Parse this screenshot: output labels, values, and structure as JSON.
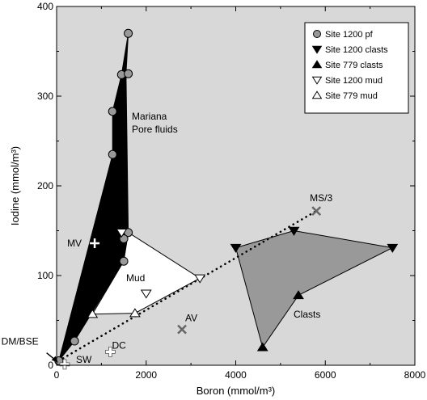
{
  "chart_data": {
    "type": "scatter",
    "xlabel": "Boron (mmol/m³)",
    "ylabel": "Iodine (mmol/m³)",
    "xlim": [
      0,
      8000
    ],
    "ylim": [
      0,
      400
    ],
    "xticks": [
      0,
      2000,
      4000,
      6000,
      8000
    ],
    "yticks": [
      0,
      100,
      200,
      300,
      400
    ],
    "grid": false,
    "legend_position": "top-right",
    "colors": {
      "panel": "#d8d8d8",
      "pore_fluid_region": "#000000",
      "mud_region": "#ffffff",
      "clasts_region": "#999999",
      "pf_marker": "#999999",
      "ref_marker": "#666666"
    },
    "legend": [
      {
        "label": "Site 1200 pf",
        "marker": "circle"
      },
      {
        "label": "Site 1200 clasts",
        "marker": "triangle-down-filled"
      },
      {
        "label": "Site 779 clasts",
        "marker": "triangle-up-filled"
      },
      {
        "label": "Site 1200 mud",
        "marker": "triangle-down-open"
      },
      {
        "label": "Site 779 mud",
        "marker": "triangle-up-open"
      }
    ],
    "series": [
      {
        "name": "Site 1200 pf",
        "marker": "circle",
        "points": [
          {
            "x": 1600,
            "y": 370
          },
          {
            "x": 1450,
            "y": 324
          },
          {
            "x": 1600,
            "y": 325
          },
          {
            "x": 1250,
            "y": 283
          },
          {
            "x": 1250,
            "y": 235
          },
          {
            "x": 1600,
            "y": 148
          },
          {
            "x": 1500,
            "y": 141
          },
          {
            "x": 1500,
            "y": 116
          },
          {
            "x": 400,
            "y": 27
          },
          {
            "x": 50,
            "y": 5
          }
        ]
      },
      {
        "name": "Site 1200 clasts",
        "marker": "triangle-down-filled",
        "points": [
          {
            "x": 4000,
            "y": 131
          },
          {
            "x": 5300,
            "y": 150
          },
          {
            "x": 7500,
            "y": 131
          }
        ]
      },
      {
        "name": "Site 779 clasts",
        "marker": "triangle-up-filled",
        "points": [
          {
            "x": 5400,
            "y": 78
          },
          {
            "x": 4600,
            "y": 20
          }
        ]
      },
      {
        "name": "Site 1200 mud",
        "marker": "triangle-down-open",
        "points": [
          {
            "x": 1450,
            "y": 148
          },
          {
            "x": 2000,
            "y": 80
          },
          {
            "x": 3200,
            "y": 97
          }
        ]
      },
      {
        "name": "Site 779 mud",
        "marker": "triangle-up-open",
        "points": [
          {
            "x": 800,
            "y": 57
          },
          {
            "x": 1750,
            "y": 58
          }
        ]
      }
    ],
    "regions": [
      {
        "name": "pore-fluids",
        "label": "Mariana\nPore fluids",
        "fill": "#000000",
        "points": [
          [
            1600,
            370
          ],
          [
            1550,
            325
          ],
          [
            1600,
            148
          ],
          [
            1500,
            116
          ],
          [
            400,
            27
          ],
          [
            50,
            5
          ],
          [
            1250,
            235
          ],
          [
            1250,
            283
          ],
          [
            1450,
            324
          ]
        ]
      },
      {
        "name": "mud",
        "label": "Mud",
        "fill": "#ffffff",
        "points": [
          [
            1600,
            148
          ],
          [
            3200,
            97
          ],
          [
            1750,
            58
          ],
          [
            800,
            57
          ],
          [
            1500,
            116
          ]
        ]
      },
      {
        "name": "clasts",
        "label": "Clasts",
        "fill": "#999999",
        "points": [
          [
            4000,
            131
          ],
          [
            5300,
            150
          ],
          [
            7500,
            131
          ],
          [
            5400,
            78
          ],
          [
            4600,
            20
          ]
        ]
      }
    ],
    "reference_points": [
      {
        "label": "MV",
        "x": 850,
        "y": 136,
        "marker": "plus",
        "color": "#ffffff"
      },
      {
        "label": "MS/3",
        "x": 5800,
        "y": 172,
        "marker": "cross",
        "color": "#666666"
      },
      {
        "label": "AV",
        "x": 2800,
        "y": 40,
        "marker": "cross",
        "color": "#666666"
      },
      {
        "label": "DC",
        "x": 1200,
        "y": 15,
        "marker": "plus-open",
        "color": "#ffffff"
      },
      {
        "label": "SW",
        "x": 180,
        "y": 1,
        "marker": "plus-open",
        "color": "#ffffff"
      },
      {
        "label": "DM/BSE",
        "x": 30,
        "y": 3,
        "marker": "arrow",
        "color": "#000000"
      }
    ],
    "mixing_line": {
      "from": [
        50,
        5
      ],
      "to": [
        5800,
        172
      ],
      "style": "dotted"
    }
  }
}
